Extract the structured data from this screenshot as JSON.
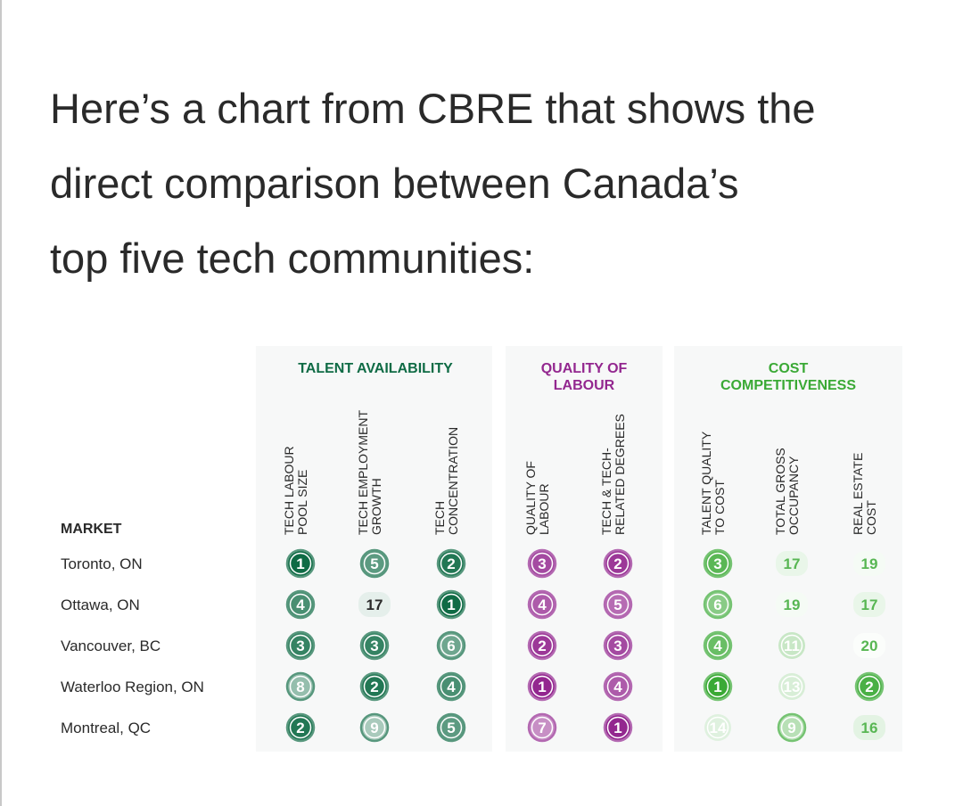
{
  "intro": {
    "lines": [
      "Here’s a chart from CBRE that shows the",
      "direct comparison between Canada’s",
      "top five tech communities:"
    ]
  },
  "chart_data": {
    "type": "table",
    "title": "",
    "row_header": "MARKET",
    "markets": [
      "Toronto, ON",
      "Ottawa, ON",
      "Vancouver, BC",
      "Waterloo Region, ON",
      "Montreal, QC"
    ],
    "groups": [
      {
        "name": "TALENT AVAILABILITY",
        "name_lines": [
          "TALENT AVAILABILITY"
        ],
        "color": "#0f6b45",
        "columns": [
          {
            "label_lines": [
              "TECH LABOUR",
              "POOL SIZE"
            ],
            "ranks": [
              1,
              4,
              3,
              8,
              2
            ]
          },
          {
            "label_lines": [
              "TECH EMPLOYMENT",
              "GROWTH"
            ],
            "ranks": [
              5,
              17,
              3,
              2,
              9
            ]
          },
          {
            "label_lines": [
              "TECH",
              "CONCENTRATION"
            ],
            "ranks": [
              2,
              1,
              6,
              4,
              5
            ]
          }
        ]
      },
      {
        "name": "QUALITY OF LABOUR",
        "name_lines": [
          "QUALITY OF",
          "LABOUR"
        ],
        "color": "#93278f",
        "columns": [
          {
            "label_lines": [
              "QUALITY OF",
              "LABOUR"
            ],
            "ranks": [
              3,
              4,
              2,
              1,
              7
            ]
          },
          {
            "label_lines": [
              "TECH & TECH-",
              "RELATED DEGREES"
            ],
            "ranks": [
              2,
              5,
              3,
              4,
              1
            ]
          }
        ]
      },
      {
        "name": "COST COMPETITIVENESS",
        "name_lines": [
          "COST",
          "COMPETITIVENESS"
        ],
        "color": "#3aa935",
        "columns": [
          {
            "label_lines": [
              "TALENT QUALITY",
              "TO COST"
            ],
            "ranks": [
              3,
              6,
              4,
              1,
              14
            ]
          },
          {
            "label_lines": [
              "TOTAL GROSS",
              "OCCUPANCY"
            ],
            "ranks": [
              17,
              19,
              11,
              13,
              9
            ]
          },
          {
            "label_lines": [
              "REAL ESTATE",
              "COST"
            ],
            "ranks": [
              19,
              17,
              20,
              2,
              16
            ]
          }
        ]
      }
    ]
  }
}
